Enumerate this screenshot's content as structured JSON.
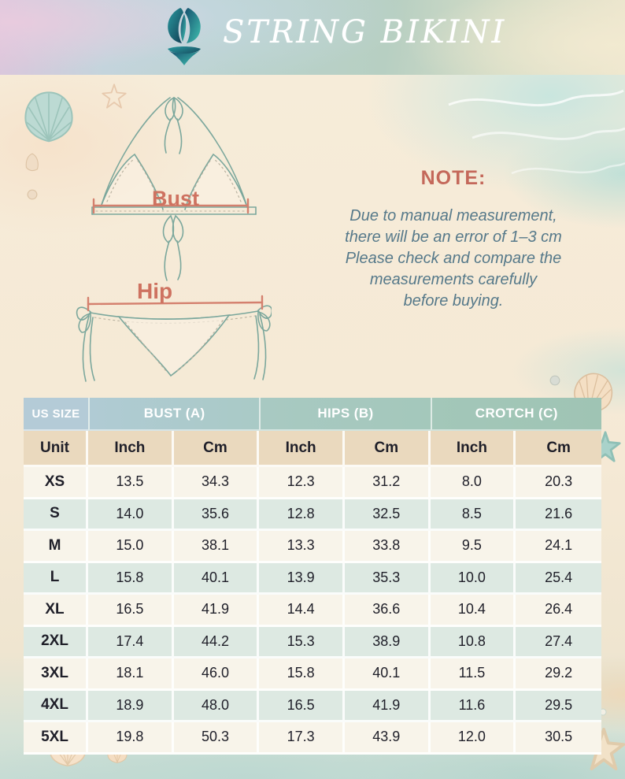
{
  "header": {
    "title": "STRING BIKINI",
    "logo_icon": "bikini-logo-icon"
  },
  "diagram": {
    "bust_label": "Bust",
    "hip_label": "Hip"
  },
  "note": {
    "heading": "NOTE:",
    "lines": [
      "Due to manual measurement,",
      "there will be an error of 1–3 cm",
      "Please check and compare the",
      "measurements carefully",
      "before buying."
    ]
  },
  "size_table": {
    "group_headers": [
      "US SIZE",
      "BUST (A)",
      "HIPS (B)",
      "CROTCH (C)"
    ],
    "unit_row": [
      "Unit",
      "Inch",
      "Cm",
      "Inch",
      "Cm",
      "Inch",
      "Cm"
    ],
    "row_keys": [
      "size",
      "bust_inch",
      "bust_cm",
      "hips_inch",
      "hips_cm",
      "crotch_inch",
      "crotch_cm"
    ],
    "rows": [
      {
        "size": "XS",
        "bust_inch": "13.5",
        "bust_cm": "34.3",
        "hips_inch": "12.3",
        "hips_cm": "31.2",
        "crotch_inch": "8.0",
        "crotch_cm": "20.3"
      },
      {
        "size": "S",
        "bust_inch": "14.0",
        "bust_cm": "35.6",
        "hips_inch": "12.8",
        "hips_cm": "32.5",
        "crotch_inch": "8.5",
        "crotch_cm": "21.6"
      },
      {
        "size": "M",
        "bust_inch": "15.0",
        "bust_cm": "38.1",
        "hips_inch": "13.3",
        "hips_cm": "33.8",
        "crotch_inch": "9.5",
        "crotch_cm": "24.1"
      },
      {
        "size": "L",
        "bust_inch": "15.8",
        "bust_cm": "40.1",
        "hips_inch": "13.9",
        "hips_cm": "35.3",
        "crotch_inch": "10.0",
        "crotch_cm": "25.4"
      },
      {
        "size": "XL",
        "bust_inch": "16.5",
        "bust_cm": "41.9",
        "hips_inch": "14.4",
        "hips_cm": "36.6",
        "crotch_inch": "10.4",
        "crotch_cm": "26.4"
      },
      {
        "size": "2XL",
        "bust_inch": "17.4",
        "bust_cm": "44.2",
        "hips_inch": "15.3",
        "hips_cm": "38.9",
        "crotch_inch": "10.8",
        "crotch_cm": "27.4"
      },
      {
        "size": "3XL",
        "bust_inch": "18.1",
        "bust_cm": "46.0",
        "hips_inch": "15.8",
        "hips_cm": "40.1",
        "crotch_inch": "11.5",
        "crotch_cm": "29.2"
      },
      {
        "size": "4XL",
        "bust_inch": "18.9",
        "bust_cm": "48.0",
        "hips_inch": "16.5",
        "hips_cm": "41.9",
        "crotch_inch": "11.6",
        "crotch_cm": "29.5"
      },
      {
        "size": "5XL",
        "bust_inch": "19.8",
        "bust_cm": "50.3",
        "hips_inch": "17.3",
        "hips_cm": "43.9",
        "crotch_inch": "12.0",
        "crotch_cm": "30.5"
      }
    ]
  },
  "colors": {
    "note_heading": "#c4685a",
    "note_text": "#56798a",
    "measure_label": "#ce7260",
    "measure_line": "#d4806e",
    "line_art": "#7ba79c",
    "table_header_blue": "#b4cbd7",
    "table_header_green": "#9fc4b4",
    "unit_row_tan": "#ead9be",
    "row_cream": "#f8f4ea",
    "row_green": "#dde9e2",
    "logo_dark_teal": "#1d4e66",
    "logo_teal": "#3ec0ae",
    "title_white": "#ffffff"
  }
}
